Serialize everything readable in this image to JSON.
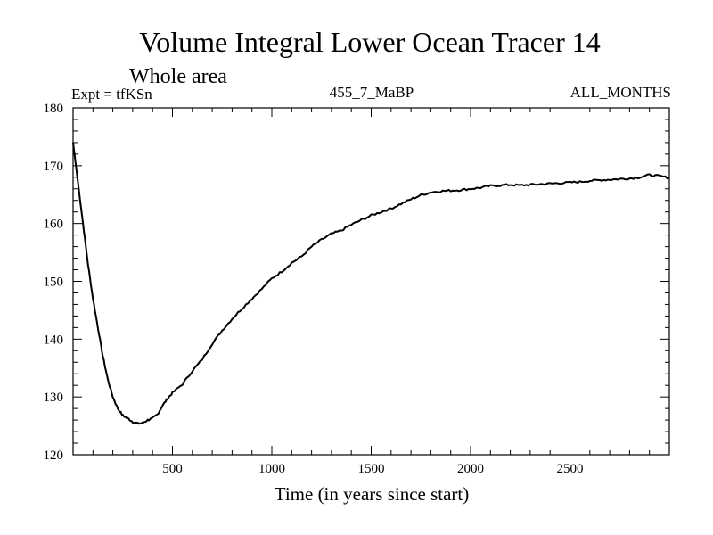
{
  "chart_data": {
    "type": "line",
    "title": "Volume Integral Lower Ocean Tracer 14",
    "subtitle": "Whole area",
    "expt_label": "Expt = tfKSn",
    "run_label": "455_7_MaBP",
    "months_label": "ALL_MONTHS",
    "xlabel": "Time (in years since start)",
    "ylabel": "",
    "xlim": [
      0,
      3000
    ],
    "ylim": [
      120,
      180
    ],
    "x_ticks": [
      500,
      1000,
      1500,
      2000,
      2500
    ],
    "y_ticks": [
      120,
      130,
      140,
      150,
      160,
      170,
      180
    ],
    "grid": false,
    "series": [
      {
        "name": "Lower Ocean Tracer 14",
        "color": "#000000",
        "x": [
          0,
          25,
          50,
          75,
          100,
          125,
          150,
          175,
          200,
          225,
          250,
          275,
          300,
          325,
          350,
          375,
          400,
          425,
          450,
          475,
          500,
          550,
          600,
          650,
          700,
          750,
          800,
          850,
          900,
          950,
          1000,
          1050,
          1100,
          1150,
          1200,
          1250,
          1300,
          1350,
          1400,
          1450,
          1500,
          1550,
          1600,
          1650,
          1700,
          1750,
          1800,
          1850,
          1900,
          1950,
          2000,
          2050,
          2100,
          2150,
          2200,
          2250,
          2300,
          2350,
          2400,
          2450,
          2500,
          2550,
          2600,
          2650,
          2700,
          2750,
          2800,
          2850,
          2900,
          2950,
          3000
        ],
        "y": [
          174,
          167,
          160,
          153,
          147,
          142,
          137,
          133,
          130,
          128,
          126.8,
          126.3,
          125.7,
          125.4,
          125.5,
          126,
          126.3,
          127,
          128.5,
          129.7,
          130.7,
          132.2,
          134.5,
          136.5,
          139.2,
          141.5,
          143.5,
          145.3,
          147,
          148.7,
          150.5,
          151.7,
          153.2,
          154.3,
          156,
          157.2,
          158.2,
          158.8,
          159.8,
          160.6,
          161.4,
          162,
          162.6,
          163.4,
          164.2,
          164.9,
          165.4,
          165.6,
          165.7,
          165.8,
          166,
          166.2,
          166.5,
          166.6,
          166.7,
          166.6,
          166.7,
          166.8,
          166.9,
          167,
          167.1,
          167.2,
          167.4,
          167.5,
          167.6,
          167.7,
          167.8,
          168,
          168.4,
          168.2,
          167.9
        ]
      }
    ]
  }
}
